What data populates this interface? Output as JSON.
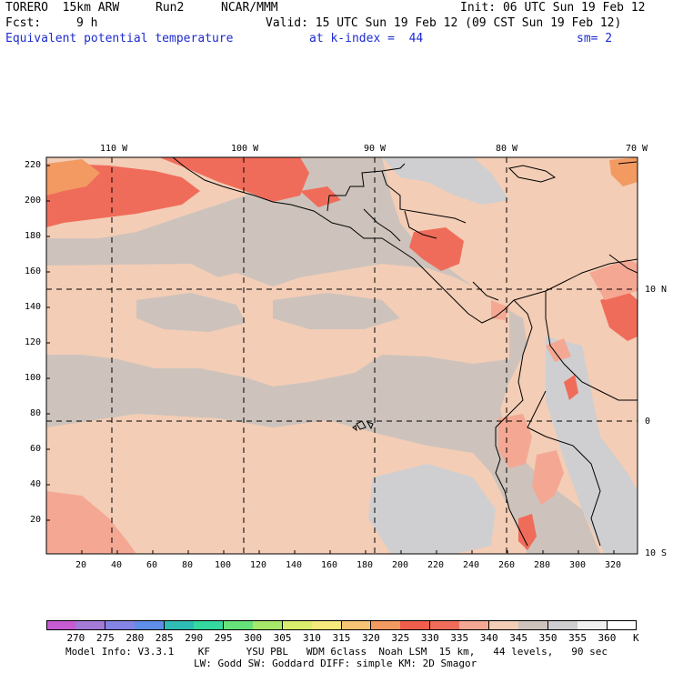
{
  "header": {
    "model": "TORERO  15km ARW",
    "run": "Run2",
    "org": "NCAR/MMM",
    "init": "Init: 06 UTC Sun 19 Feb 12",
    "fcst_label": "Fcst:",
    "fcst_value": "9 h",
    "valid": "Valid: 15 UTC Sun 19 Feb 12 (09 CST Sun 19 Feb 12)",
    "field": "Equivalent potential temperature",
    "kindex": "at k-index =  44",
    "smoothing": "sm= 2"
  },
  "axes": {
    "lon_labels": [
      "110 W",
      "100 W",
      "90 W",
      "80 W",
      "70 W"
    ],
    "lat_labels": [
      "10 N",
      "0",
      "10 S"
    ],
    "y_ticks": [
      "220",
      "200",
      "180",
      "160",
      "140",
      "120",
      "100",
      "80",
      "60",
      "40",
      "20"
    ],
    "x_ticks": [
      "20",
      "40",
      "60",
      "80",
      "100",
      "120",
      "140",
      "160",
      "180",
      "200",
      "220",
      "240",
      "260",
      "280",
      "300",
      "320"
    ]
  },
  "colorbar": {
    "labels": [
      "270",
      "275",
      "280",
      "285",
      "290",
      "295",
      "300",
      "305",
      "310",
      "315",
      "320",
      "325",
      "330",
      "335",
      "340",
      "345",
      "350",
      "355",
      "360"
    ],
    "unit": "K",
    "colors": [
      "#c65bd2",
      "#a47ad6",
      "#8384e6",
      "#5f8ee8",
      "#2fbcb4",
      "#33d99e",
      "#66e27a",
      "#a6e86a",
      "#d9ee6d",
      "#f6e97b",
      "#f6c474",
      "#f39a62",
      "#ef5e4c",
      "#f06c5a",
      "#f4a893",
      "#f3cdb6",
      "#cdc3bc",
      "#cfcfd1",
      "#f1f1f1",
      "#ffffff"
    ]
  },
  "footer": {
    "line1": "Model Info: V3.3.1    KF      YSU PBL   WDM 6class  Noah LSM  15 km,   44 levels,   90 sec",
    "line2": "LW: Godd SW: Goddard DIFF: simple KM: 2D Smagor"
  }
}
